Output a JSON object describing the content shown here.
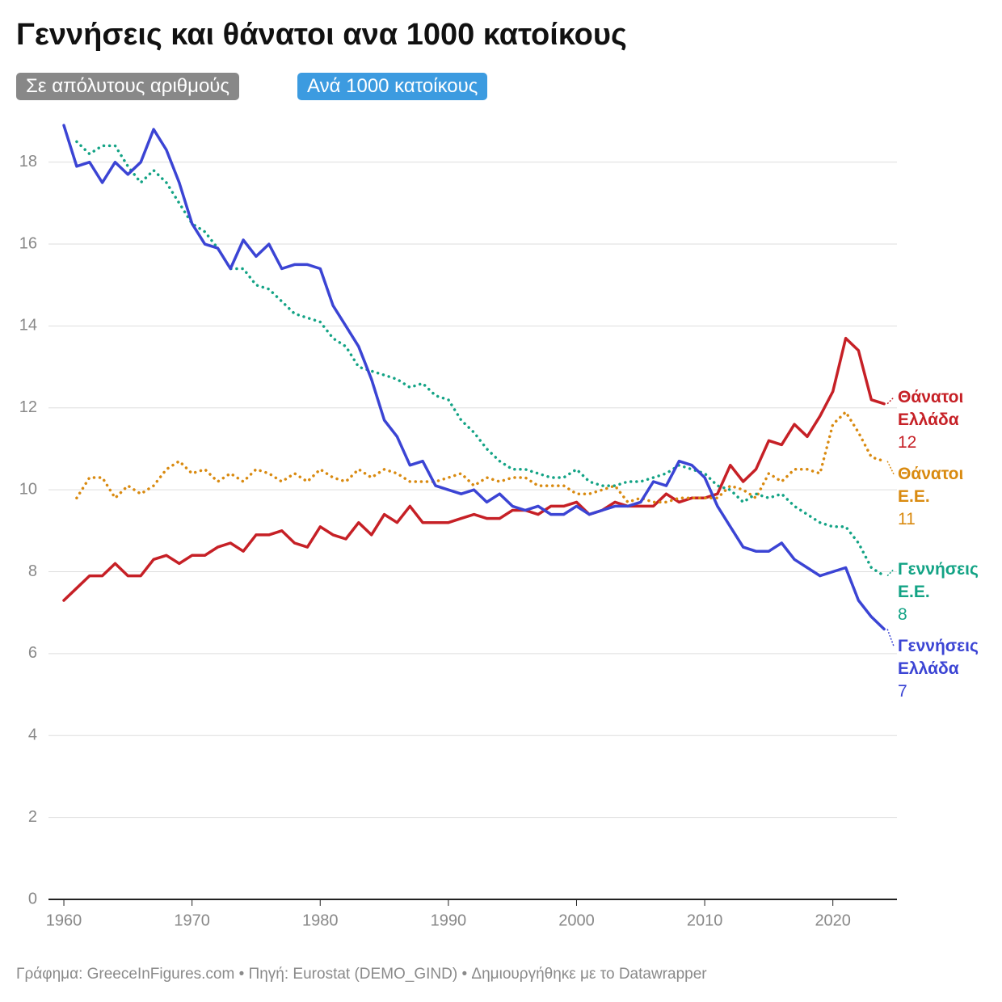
{
  "chart_data": {
    "type": "line",
    "title": "Γεννήσεις και θάνατοι ανα 1000 κατοίκους",
    "buttons": [
      "Σε απόλυτους αριθμούς",
      "Ανά 1000 κατοίκους"
    ],
    "footer": "Γράφημα: GreeceInFigures.com • Πηγή: Eurostat (DEMO_GIND) • Δημιουργήθηκε με το Datawrapper",
    "x": [
      1960,
      1961,
      1962,
      1963,
      1964,
      1965,
      1966,
      1967,
      1968,
      1969,
      1970,
      1971,
      1972,
      1973,
      1974,
      1975,
      1976,
      1977,
      1978,
      1979,
      1980,
      1981,
      1982,
      1983,
      1984,
      1985,
      1986,
      1987,
      1988,
      1989,
      1990,
      1991,
      1992,
      1993,
      1994,
      1995,
      1996,
      1997,
      1998,
      1999,
      2000,
      2001,
      2002,
      2003,
      2004,
      2005,
      2006,
      2007,
      2008,
      2009,
      2010,
      2011,
      2012,
      2013,
      2014,
      2015,
      2016,
      2017,
      2018,
      2019,
      2020,
      2021,
      2022,
      2023,
      2024
    ],
    "xlim": [
      1958.8,
      2025
    ],
    "xticks": [
      1960,
      1970,
      1980,
      1990,
      2000,
      2010,
      2020
    ],
    "ylim": [
      0,
      19
    ],
    "yticks": [
      0,
      2,
      4,
      6,
      8,
      10,
      12,
      14,
      16,
      18
    ],
    "grid": true,
    "series": [
      {
        "name": "Θάνατοι Ελλάδα",
        "color": "#c62026",
        "style": "solid",
        "end_value": 12,
        "values": [
          7.3,
          7.6,
          7.9,
          7.9,
          8.2,
          7.9,
          7.9,
          8.3,
          8.4,
          8.2,
          8.4,
          8.4,
          8.6,
          8.7,
          8.5,
          8.9,
          8.9,
          9.0,
          8.7,
          8.6,
          9.1,
          8.9,
          8.8,
          9.2,
          8.9,
          9.4,
          9.2,
          9.6,
          9.2,
          9.2,
          9.2,
          9.3,
          9.4,
          9.3,
          9.3,
          9.5,
          9.5,
          9.4,
          9.6,
          9.6,
          9.7,
          9.4,
          9.5,
          9.7,
          9.6,
          9.6,
          9.6,
          9.9,
          9.7,
          9.8,
          9.8,
          9.9,
          10.6,
          10.2,
          10.5,
          11.2,
          11.1,
          11.6,
          11.3,
          11.8,
          12.4,
          13.7,
          13.4,
          12.2,
          12.1
        ]
      },
      {
        "name": "Θάνατοι Ε.Ε.",
        "color": "#d98a10",
        "style": "dotted",
        "end_value": 11,
        "values": [
          null,
          9.8,
          10.3,
          10.3,
          9.8,
          10.1,
          9.9,
          10.1,
          10.5,
          10.7,
          10.4,
          10.5,
          10.2,
          10.4,
          10.2,
          10.5,
          10.4,
          10.2,
          10.4,
          10.2,
          10.5,
          10.3,
          10.2,
          10.5,
          10.3,
          10.5,
          10.4,
          10.2,
          10.2,
          10.2,
          10.3,
          10.4,
          10.1,
          10.3,
          10.2,
          10.3,
          10.3,
          10.1,
          10.1,
          10.1,
          9.9,
          9.9,
          10.0,
          10.1,
          9.7,
          9.8,
          9.7,
          9.7,
          9.8,
          9.8,
          9.8,
          9.8,
          10.1,
          10.0,
          9.8,
          10.4,
          10.2,
          10.5,
          10.5,
          10.4,
          11.6,
          11.9,
          11.4,
          10.8,
          10.7
        ]
      },
      {
        "name": "Γεννήσεις Ε.Ε.",
        "color": "#13a385",
        "style": "dotted",
        "end_value": 8,
        "values": [
          null,
          18.5,
          18.2,
          18.4,
          18.4,
          17.9,
          17.5,
          17.8,
          17.5,
          17.0,
          16.5,
          16.3,
          15.9,
          15.4,
          15.4,
          15.0,
          14.9,
          14.6,
          14.3,
          14.2,
          14.1,
          13.7,
          13.5,
          13.0,
          12.9,
          12.8,
          12.7,
          12.5,
          12.6,
          12.3,
          12.2,
          11.7,
          11.4,
          11.0,
          10.7,
          10.5,
          10.5,
          10.4,
          10.3,
          10.3,
          10.5,
          10.2,
          10.1,
          10.1,
          10.2,
          10.2,
          10.3,
          10.4,
          10.6,
          10.5,
          10.4,
          10.1,
          10.0,
          9.7,
          9.9,
          9.8,
          9.9,
          9.6,
          9.4,
          9.2,
          9.1,
          9.1,
          8.7,
          8.1,
          7.9
        ]
      },
      {
        "name": "Γεννήσεις Ελλάδα",
        "color": "#3b44d4",
        "style": "solid",
        "end_value": 7,
        "values": [
          18.9,
          17.9,
          18.0,
          17.5,
          18.0,
          17.7,
          18.0,
          18.8,
          18.3,
          17.5,
          16.5,
          16.0,
          15.9,
          15.4,
          16.1,
          15.7,
          16.0,
          15.4,
          15.5,
          15.5,
          15.4,
          14.5,
          14.0,
          13.5,
          12.7,
          11.7,
          11.3,
          10.6,
          10.7,
          10.1,
          10.0,
          9.9,
          10.0,
          9.7,
          9.9,
          9.6,
          9.5,
          9.6,
          9.4,
          9.4,
          9.6,
          9.4,
          9.5,
          9.6,
          9.6,
          9.7,
          10.2,
          10.1,
          10.7,
          10.6,
          10.3,
          9.6,
          9.1,
          8.6,
          8.5,
          8.5,
          8.7,
          8.3,
          8.1,
          7.9,
          8.0,
          8.1,
          7.3,
          6.9,
          6.6
        ]
      }
    ]
  }
}
